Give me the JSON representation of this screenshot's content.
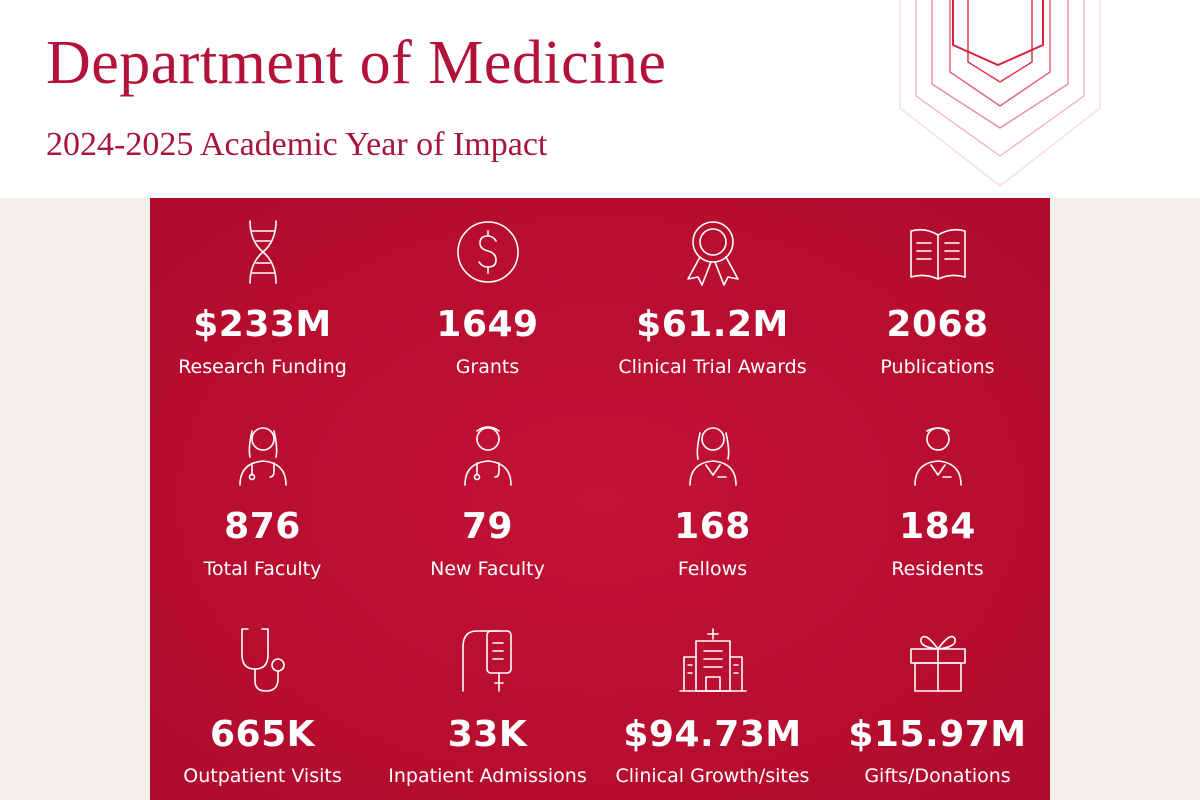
{
  "header": {
    "title": "Department of Medicine",
    "subtitle": "2024-2025 Academic Year of Impact"
  },
  "stats": [
    {
      "value": "$233M",
      "label": "Research Funding"
    },
    {
      "value": "1649",
      "label": "Grants"
    },
    {
      "value": "$61.2M",
      "label": "Clinical Trial Awards"
    },
    {
      "value": "2068",
      "label": "Publications"
    },
    {
      "value": "876",
      "label": "Total Faculty"
    },
    {
      "value": "79",
      "label": "New Faculty"
    },
    {
      "value": "168",
      "label": "Fellows"
    },
    {
      "value": "184",
      "label": "Residents"
    },
    {
      "value": "665K",
      "label": "Outpatient Visits"
    },
    {
      "value": "33K",
      "label": "Inpatient Admissions"
    },
    {
      "value": "$94.73M",
      "label": "Clinical Growth/sites"
    },
    {
      "value": "$15.97M",
      "label": "Gifts/Donations"
    }
  ]
}
